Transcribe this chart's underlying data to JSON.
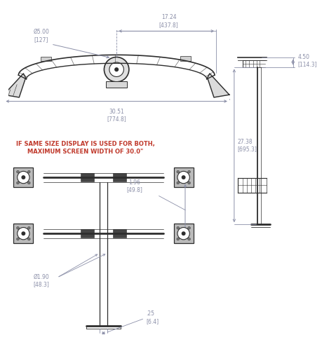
{
  "bg_color": "#ffffff",
  "line_color": "#2d2d2d",
  "dim_color": "#8b8fa8",
  "note_color": "#c0392b",
  "fig_width": 4.79,
  "fig_height": 5.08,
  "dpi": 100,
  "note_line1": "IF SAME SIZE DISPLAY IS USED FOR BOTH,",
  "note_line2": "MAXIMUM SCREEN WIDTH OF 30.0\"",
  "dims": {
    "diameter_grommet": "Ø5.00\n[127]",
    "width_top": "17.24\n[437.8]",
    "width_bottom": "30.51\n[774.8]",
    "spacing": "1.96\n[49.8]",
    "pole_diameter": "Ø1.90\n[48.3]",
    "base_width": ".25\n[6.4]",
    "height": "27.38\n[695.3]",
    "top_dim": "4.50\n[114.3]"
  }
}
